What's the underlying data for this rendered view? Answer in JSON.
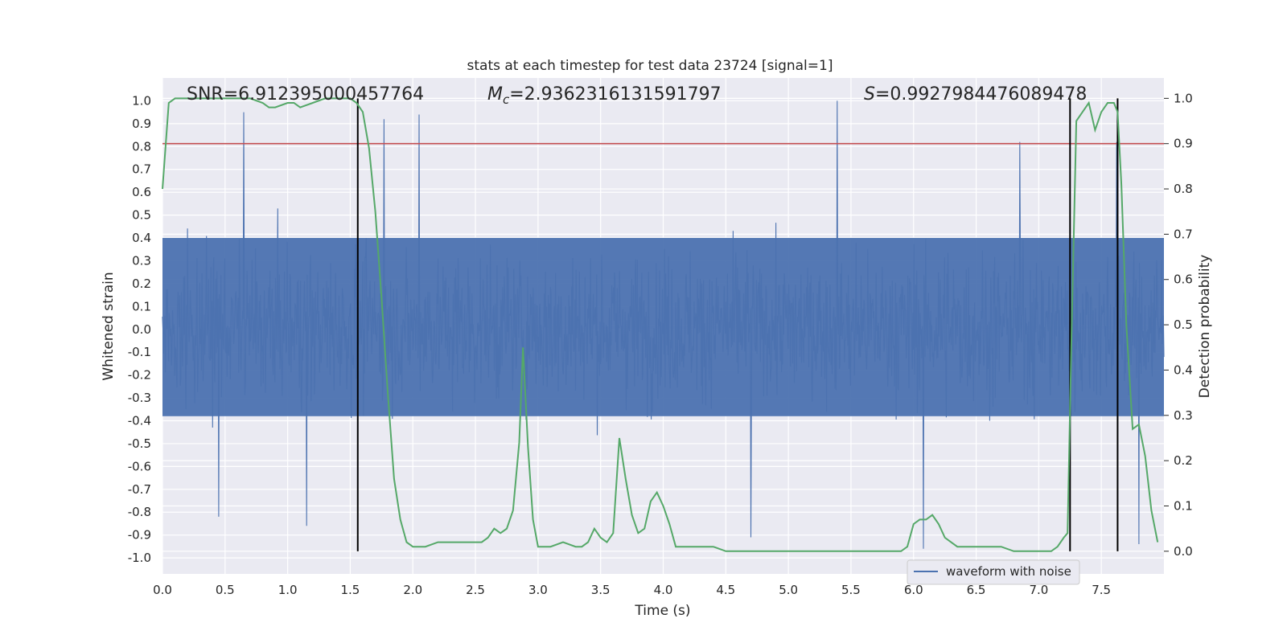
{
  "chart_data": {
    "type": "line",
    "title": "stats at each timestep for test data 23724 [signal=1]",
    "xlabel": "Time (s)",
    "ylabel_left": "Whitened strain",
    "ylabel_right": "Detection probability",
    "xlim": [
      0,
      8
    ],
    "ylim_left": [
      -1.07,
      1.1
    ],
    "ylim_right": [
      -0.05,
      1.045
    ],
    "x_ticks": [
      "0.0",
      "0.5",
      "1.0",
      "1.5",
      "2.0",
      "2.5",
      "3.0",
      "3.5",
      "4.0",
      "4.5",
      "5.0",
      "5.5",
      "6.0",
      "6.5",
      "7.0",
      "7.5"
    ],
    "y_left_ticks": [
      "1.0",
      "0.9",
      "0.8",
      "0.7",
      "0.6",
      "0.5",
      "0.4",
      "0.3",
      "0.2",
      "0.1",
      "0.0",
      "-0.1",
      "-0.2",
      "-0.3",
      "-0.4",
      "-0.5",
      "-0.6",
      "-0.7",
      "-0.8",
      "-0.9",
      "-1.0"
    ],
    "y_right_ticks": [
      "1.0",
      "0.9",
      "0.8",
      "0.7",
      "0.6",
      "0.5",
      "0.4",
      "0.3",
      "0.2",
      "0.1",
      "0.0"
    ],
    "annotations": {
      "snr": "SNR=6.912395000457764",
      "mc_symbol": "M",
      "mc_subscript": "c",
      "mc_value": "=2.9362316131591797",
      "s_symbol": "S",
      "s_value": "=0.9927984476089478"
    },
    "threshold_probability": 0.9,
    "vertical_lines_x": [
      1.56,
      7.25,
      7.63
    ],
    "legend": {
      "placement": "lower-right",
      "entries": [
        "waveform with noise"
      ]
    },
    "waveform": {
      "name": "waveform with noise",
      "sample_count": 1800,
      "typical_band": [
        -0.38,
        0.4
      ],
      "peaks": [
        {
          "x": 0.65,
          "y": 0.95
        },
        {
          "x": 1.77,
          "y": 0.92
        },
        {
          "x": 2.05,
          "y": 0.94
        },
        {
          "x": 5.39,
          "y": 1.0
        },
        {
          "x": 6.85,
          "y": 0.82
        },
        {
          "x": 7.62,
          "y": 0.82
        },
        {
          "x": 0.45,
          "y": -0.82
        },
        {
          "x": 1.15,
          "y": -0.86
        },
        {
          "x": 4.7,
          "y": -0.91
        },
        {
          "x": 6.08,
          "y": -0.96
        },
        {
          "x": 7.8,
          "y": -0.94
        }
      ]
    },
    "detection_probability": {
      "name": "Detection probability",
      "x": [
        0.0,
        0.05,
        0.1,
        0.15,
        0.2,
        0.3,
        0.4,
        0.5,
        0.6,
        0.7,
        0.8,
        0.85,
        0.9,
        1.0,
        1.05,
        1.1,
        1.2,
        1.3,
        1.4,
        1.5,
        1.55,
        1.6,
        1.65,
        1.7,
        1.75,
        1.8,
        1.85,
        1.9,
        1.95,
        2.0,
        2.1,
        2.2,
        2.3,
        2.4,
        2.5,
        2.55,
        2.6,
        2.65,
        2.7,
        2.75,
        2.8,
        2.85,
        2.88,
        2.92,
        2.96,
        3.0,
        3.05,
        3.1,
        3.2,
        3.3,
        3.35,
        3.4,
        3.45,
        3.5,
        3.55,
        3.6,
        3.65,
        3.7,
        3.75,
        3.8,
        3.85,
        3.9,
        3.95,
        4.0,
        4.05,
        4.1,
        4.15,
        4.2,
        4.3,
        4.4,
        4.5,
        4.8,
        5.0,
        5.2,
        5.3,
        5.4,
        5.6,
        5.8,
        5.85,
        5.9,
        5.95,
        6.0,
        6.05,
        6.1,
        6.15,
        6.2,
        6.25,
        6.3,
        6.35,
        6.4,
        6.5,
        6.7,
        6.8,
        6.9,
        7.0,
        7.1,
        7.15,
        7.2,
        7.23,
        7.26,
        7.3,
        7.35,
        7.4,
        7.45,
        7.5,
        7.55,
        7.6,
        7.63,
        7.66,
        7.7,
        7.75,
        7.8,
        7.85,
        7.9,
        7.95
      ],
      "y": [
        0.8,
        0.99,
        1.0,
        1.0,
        1.0,
        1.0,
        1.0,
        1.0,
        1.0,
        1.0,
        0.99,
        0.98,
        0.98,
        0.99,
        0.99,
        0.98,
        0.99,
        1.0,
        1.0,
        1.0,
        0.99,
        0.97,
        0.89,
        0.75,
        0.56,
        0.35,
        0.16,
        0.07,
        0.02,
        0.01,
        0.01,
        0.02,
        0.02,
        0.02,
        0.02,
        0.02,
        0.03,
        0.05,
        0.04,
        0.05,
        0.09,
        0.24,
        0.45,
        0.23,
        0.07,
        0.01,
        0.01,
        0.01,
        0.02,
        0.01,
        0.01,
        0.02,
        0.05,
        0.03,
        0.02,
        0.04,
        0.25,
        0.16,
        0.08,
        0.04,
        0.05,
        0.11,
        0.13,
        0.1,
        0.06,
        0.01,
        0.01,
        0.01,
        0.01,
        0.01,
        0.0,
        0.0,
        0.0,
        0.0,
        0.0,
        0.0,
        0.0,
        0.0,
        0.0,
        0.0,
        0.01,
        0.06,
        0.07,
        0.07,
        0.08,
        0.06,
        0.03,
        0.02,
        0.01,
        0.01,
        0.01,
        0.01,
        0.0,
        0.0,
        0.0,
        0.0,
        0.01,
        0.03,
        0.04,
        0.45,
        0.95,
        0.97,
        0.99,
        0.93,
        0.97,
        0.99,
        0.99,
        0.97,
        0.81,
        0.5,
        0.27,
        0.28,
        0.21,
        0.09,
        0.02
      ]
    },
    "colors": {
      "background": "#EAEAF2",
      "grid": "#FFFFFF",
      "waveform": "#4C72B0",
      "probability": "#55A868",
      "threshold": "#C44E52",
      "vlines": "#000000"
    }
  }
}
